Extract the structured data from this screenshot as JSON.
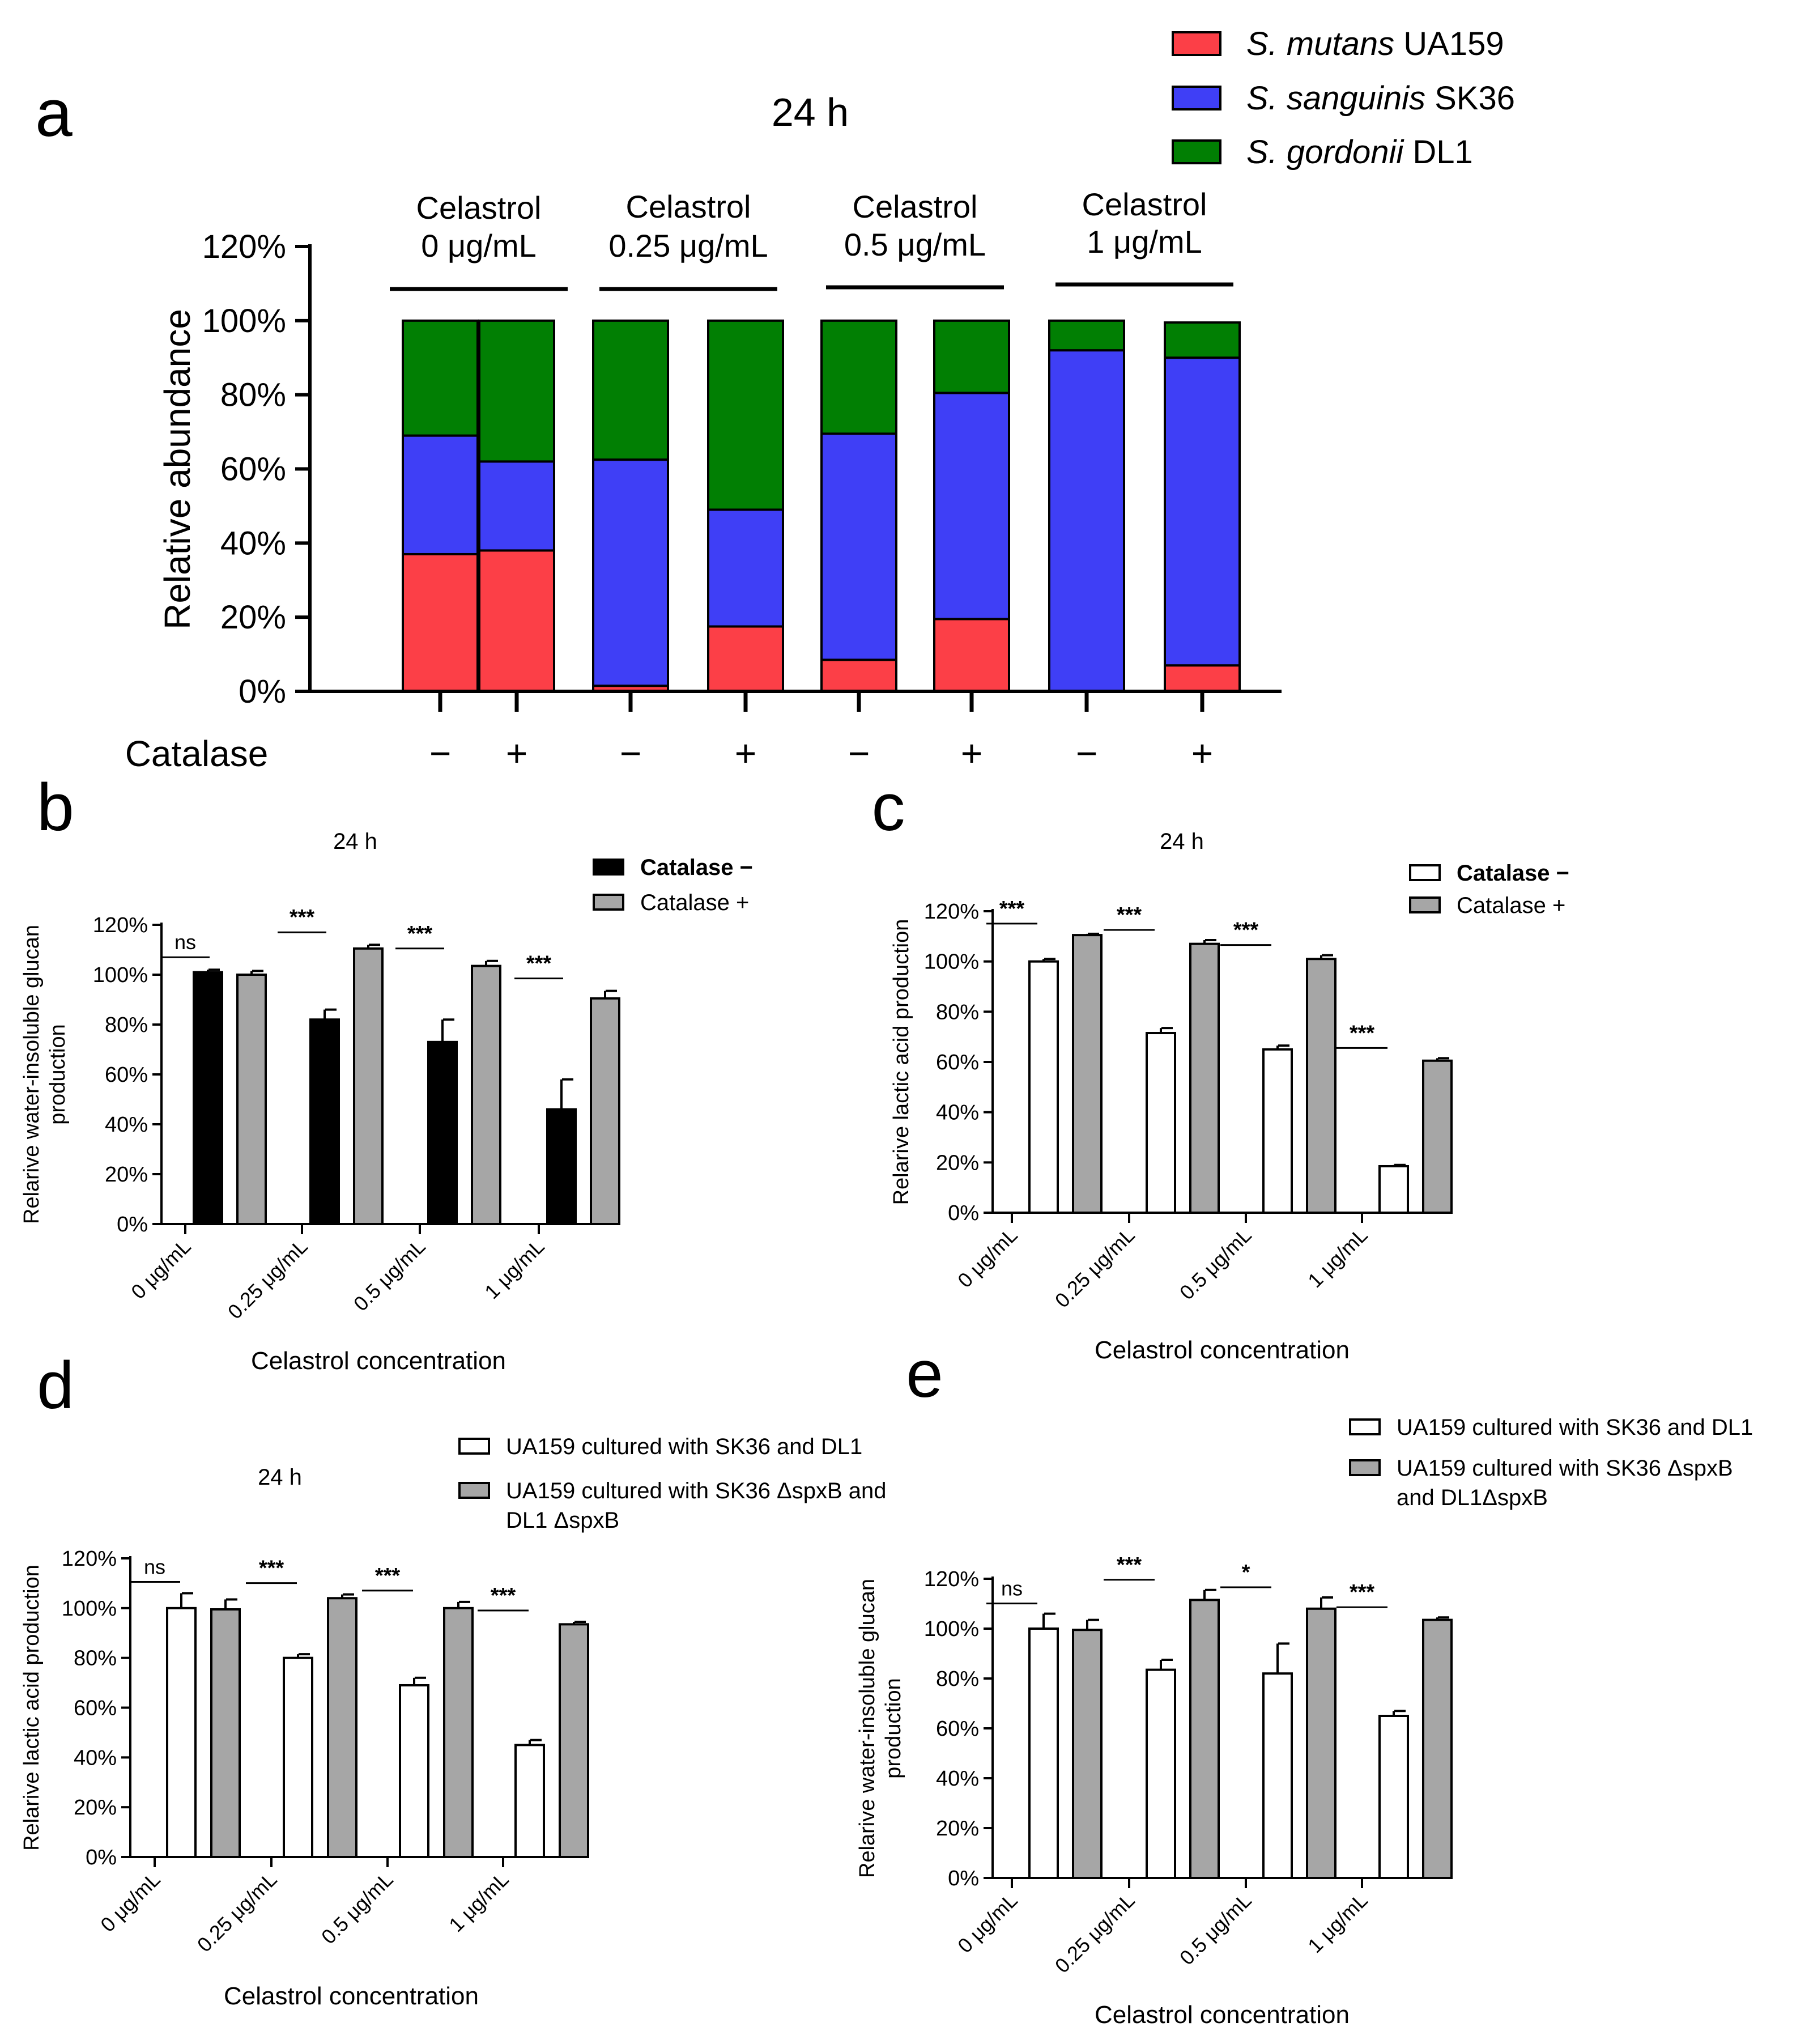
{
  "figure": {
    "panel_letters": [
      "a",
      "b",
      "c",
      "d",
      "e"
    ]
  },
  "colors": {
    "mutans": "#fc3f47",
    "sanguinis": "#3f3ff6",
    "gordonii": "#017f03",
    "black_bar": "#000000",
    "gray_bar": "#a6a6a6",
    "white_bar": "#ffffff"
  },
  "chart_data": [
    {
      "id": "a",
      "type": "stacked_bar",
      "title": "24 h",
      "ylabel": "Relative abundance",
      "xlabel": "Catalase",
      "ylim": [
        0,
        120
      ],
      "yticks": [
        "0%",
        "20%",
        "40%",
        "60%",
        "80%",
        "100%",
        "120%"
      ],
      "groups": [
        {
          "line1": "Celastrol",
          "line2": "0 μg/mL"
        },
        {
          "line1": "Celastrol",
          "line2": "0.25 μg/mL"
        },
        {
          "line1": "Celastrol",
          "line2": "0.5 μg/mL"
        },
        {
          "line1": "Celastrol",
          "line2": "1 μg/mL"
        }
      ],
      "categories": [
        "−",
        "+",
        "−",
        "+",
        "−",
        "+",
        "−",
        "+"
      ],
      "legend": [
        {
          "italic": "S. mutans",
          "rest": " UA159"
        },
        {
          "italic": "S. sanguinis",
          "rest": " SK36"
        },
        {
          "italic": "S. gordonii",
          "rest": " DL1"
        }
      ],
      "series": [
        {
          "name": "S. mutans UA159",
          "values": [
            37,
            38,
            1.5,
            17.5,
            8.5,
            19.5,
            0,
            7
          ]
        },
        {
          "name": "S. sanguinis SK36",
          "values": [
            32,
            24,
            61,
            31.5,
            61,
            61,
            92,
            83
          ]
        },
        {
          "name": "S. gordonii DL1",
          "values": [
            31,
            38,
            37.5,
            51,
            30.5,
            19.5,
            8,
            9.5
          ]
        }
      ]
    },
    {
      "id": "b",
      "type": "bar",
      "title": "24 h",
      "ylabel": "Relarive water-insoluble glucan\nproduction",
      "xlabel": "Celastrol concentration",
      "ylim": [
        0,
        120
      ],
      "yticks": [
        "0%",
        "20%",
        "40%",
        "60%",
        "80%",
        "100%",
        "120%"
      ],
      "categories": [
        "0 μg/mL",
        "0.25 μg/mL",
        "0.5 μg/mL",
        "1 μg/mL"
      ],
      "series": [
        {
          "name": "Catalase −",
          "bold": true,
          "color": "black",
          "values": [
            101,
            82,
            73,
            46
          ],
          "errors": [
            1,
            4,
            9,
            12
          ]
        },
        {
          "name": "Catalase +",
          "bold": false,
          "color": "gray",
          "values": [
            100,
            110.5,
            103.5,
            90.5
          ],
          "errors": [
            1.5,
            1.5,
            2,
            3
          ]
        }
      ],
      "significance": [
        "ns",
        "***",
        "***",
        "***"
      ]
    },
    {
      "id": "c",
      "type": "bar",
      "title": "24 h",
      "ylabel": "Relarive lactic acid production",
      "xlabel": "Celastrol concentration",
      "ylim": [
        0,
        120
      ],
      "yticks": [
        "0%",
        "20%",
        "40%",
        "60%",
        "80%",
        "100%",
        "120%"
      ],
      "categories": [
        "0 μg/mL",
        "0.25 μg/mL",
        "0.5 μg/mL",
        "1 μg/mL"
      ],
      "series": [
        {
          "name": "Catalase −",
          "bold": true,
          "color": "white",
          "values": [
            100,
            71.5,
            65,
            18.5
          ],
          "errors": [
            1,
            2,
            1.5,
            0.5
          ]
        },
        {
          "name": "Catalase +",
          "bold": false,
          "color": "gray",
          "values": [
            110.5,
            107,
            101,
            60.5
          ],
          "errors": [
            0.5,
            1.5,
            1.5,
            1
          ]
        }
      ],
      "significance": [
        "***",
        "***",
        "***",
        "***"
      ]
    },
    {
      "id": "d",
      "type": "bar",
      "title": "24 h",
      "ylabel": "Relarive lactic acid production",
      "xlabel": "Celastrol concentration",
      "ylim": [
        0,
        120
      ],
      "yticks": [
        "0%",
        "20%",
        "40%",
        "60%",
        "80%",
        "100%",
        "120%"
      ],
      "categories": [
        "0 μg/mL",
        "0.25 μg/mL",
        "0.5 μg/mL",
        "1 μg/mL"
      ],
      "legend": [
        {
          "lines": [
            "UA159 cultured with SK36 and DL1"
          ]
        },
        {
          "lines": [
            "UA159 cultured with SK36 ΔspxB and",
            "DL1 ΔspxB"
          ]
        }
      ],
      "series": [
        {
          "name": "UA159 cultured with SK36 and DL1",
          "color": "white",
          "values": [
            100,
            80,
            69,
            45
          ],
          "errors": [
            6,
            1.5,
            3,
            2
          ]
        },
        {
          "name": "UA159 cultured with SK36 ΔspxB and DL1 ΔspxB",
          "color": "gray",
          "values": [
            99.5,
            104,
            100,
            93.5
          ],
          "errors": [
            4,
            1.5,
            2.5,
            1
          ]
        }
      ],
      "significance": [
        "ns",
        "***",
        "***",
        "***"
      ]
    },
    {
      "id": "e",
      "type": "bar",
      "title": "",
      "ylabel": "Relarive water-insoluble glucan\nproduction",
      "xlabel": "Celastrol concentration",
      "ylim": [
        0,
        120
      ],
      "yticks": [
        "0%",
        "20%",
        "40%",
        "60%",
        "80%",
        "100%",
        "120%"
      ],
      "categories": [
        "0 μg/mL",
        "0.25 μg/mL",
        "0.5 μg/mL",
        "1 μg/mL"
      ],
      "legend": [
        {
          "lines": [
            "UA159 cultured with SK36 and DL1"
          ]
        },
        {
          "lines": [
            "UA159 cultured with SK36 ΔspxB",
            "and DL1ΔspxB"
          ]
        }
      ],
      "series": [
        {
          "name": "UA159 cultured with SK36 and DL1",
          "color": "white",
          "values": [
            100,
            83.5,
            82,
            65
          ],
          "errors": [
            6,
            4,
            12,
            2
          ]
        },
        {
          "name": "UA159 cultured with SK36 ΔspxB and DL1ΔspxB",
          "color": "gray",
          "values": [
            99.5,
            111.5,
            108,
            103.5
          ],
          "errors": [
            4,
            4,
            4.5,
            1
          ]
        }
      ],
      "significance": [
        "ns",
        "***",
        "*",
        "***"
      ]
    }
  ]
}
